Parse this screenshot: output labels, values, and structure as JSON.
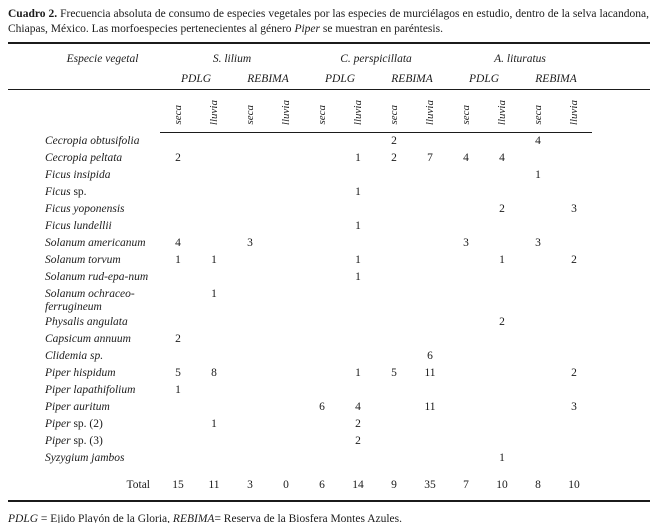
{
  "colors": {
    "text": "#1b1b1b",
    "background": "#ffffff",
    "rule": "#1b1b1b"
  },
  "caption": {
    "label": "Cuadro 2.",
    "text_before": " Frecuencia absoluta de consumo de especies vegetales por las especies de murciélagos en estudio, dentro de la selva lacandona, Chiapas, México. Las morfoespecies pertenecientes al género ",
    "italic_word": "Piper",
    "text_after": " se muestran en paréntesis."
  },
  "table": {
    "col_header": "Especie vegetal",
    "groups": [
      "S. lilium",
      "C. perspicillata",
      "A. lituratus"
    ],
    "sites": [
      "PDLG",
      "REBIMA",
      "PDLG",
      "REBIMA",
      "PDLG",
      "REBIMA"
    ],
    "seasons": [
      "seca",
      "lluvia",
      "seca",
      "lluvia",
      "seca",
      "lluvia",
      "seca",
      "lluvia",
      "seca",
      "lluvia",
      "seca",
      "lluvia"
    ],
    "rows": [
      {
        "italic": "Cecropia obtusifolia",
        "roman": "",
        "values": [
          "",
          "",
          "",
          "",
          "",
          "",
          "2",
          "",
          "",
          "",
          "4",
          ""
        ]
      },
      {
        "italic": "Cecropia peltata",
        "roman": "",
        "values": [
          "2",
          "",
          "",
          "",
          "",
          "1",
          "2",
          "7",
          "4",
          "4",
          "",
          ""
        ]
      },
      {
        "italic": "Ficus insipida",
        "roman": "",
        "values": [
          "",
          "",
          "",
          "",
          "",
          "",
          "",
          "",
          "",
          "",
          "1",
          ""
        ]
      },
      {
        "italic": "Ficus",
        "roman": " sp.",
        "values": [
          "",
          "",
          "",
          "",
          "",
          "1",
          "",
          "",
          "",
          "",
          "",
          ""
        ]
      },
      {
        "italic": "Ficus yoponensis",
        "roman": "",
        "values": [
          "",
          "",
          "",
          "",
          "",
          "",
          "",
          "",
          "",
          "2",
          "",
          "3"
        ]
      },
      {
        "italic": "Ficus lundellii",
        "roman": "",
        "values": [
          "",
          "",
          "",
          "",
          "",
          "1",
          "",
          "",
          "",
          "",
          "",
          ""
        ]
      },
      {
        "italic": "Solanum americanum",
        "roman": "",
        "values": [
          "4",
          "",
          "3",
          "",
          "",
          "",
          "",
          "",
          "3",
          "",
          "3",
          ""
        ]
      },
      {
        "italic": "Solanum torvum",
        "roman": "",
        "values": [
          "1",
          "1",
          "",
          "",
          "",
          "1",
          "",
          "",
          "",
          "1",
          "",
          "2"
        ]
      },
      {
        "italic": "Solanum rud-epa-num",
        "roman": "",
        "values": [
          "",
          "",
          "",
          "",
          "",
          "1",
          "",
          "",
          "",
          "",
          "",
          ""
        ]
      },
      {
        "italic": "Solanum ochraceo-ferrugineum",
        "roman": "",
        "values": [
          "",
          "1",
          "",
          "",
          "",
          "",
          "",
          "",
          "",
          "",
          "",
          ""
        ]
      },
      {
        "italic": "Physalis angulata",
        "roman": "",
        "values": [
          "",
          "",
          "",
          "",
          "",
          "",
          "",
          "",
          "",
          "2",
          "",
          ""
        ]
      },
      {
        "italic": "Capsicum annuum",
        "roman": "",
        "values": [
          "2",
          "",
          "",
          "",
          "",
          "",
          "",
          "",
          "",
          "",
          "",
          ""
        ]
      },
      {
        "italic": "Clidemia sp.",
        "roman": "",
        "values": [
          "",
          "",
          "",
          "",
          "",
          "",
          "",
          "6",
          "",
          "",
          "",
          ""
        ]
      },
      {
        "italic": "Piper hispidum",
        "roman": "",
        "values": [
          "5",
          "8",
          "",
          "",
          "",
          "1",
          "5",
          "11",
          "",
          "",
          "",
          "2"
        ]
      },
      {
        "italic": "Piper lapathifolium",
        "roman": "",
        "values": [
          "1",
          "",
          "",
          "",
          "",
          "",
          "",
          "",
          "",
          "",
          "",
          ""
        ]
      },
      {
        "italic": "Piper auritum",
        "roman": "",
        "values": [
          "",
          "",
          "",
          "",
          "6",
          "4",
          "",
          "11",
          "",
          "",
          "",
          "3"
        ]
      },
      {
        "italic": "Piper",
        "roman": " sp. (2)",
        "values": [
          "",
          "1",
          "",
          "",
          "",
          "2",
          "",
          "",
          "",
          "",
          "",
          ""
        ]
      },
      {
        "italic": "Piper",
        "roman": " sp. (3)",
        "values": [
          "",
          "",
          "",
          "",
          "",
          "2",
          "",
          "",
          "",
          "",
          "",
          ""
        ]
      },
      {
        "italic": "Syzygium jambos",
        "roman": "",
        "values": [
          "",
          "",
          "",
          "",
          "",
          "",
          "",
          "",
          "",
          "1",
          "",
          ""
        ]
      }
    ],
    "total": {
      "label": "Total",
      "values": [
        "15",
        "11",
        "3",
        "0",
        "6",
        "14",
        "9",
        "35",
        "7",
        "10",
        "8",
        "10"
      ]
    }
  },
  "footnote": {
    "italic1": "PDLG",
    "text1": " = Ejido Playón de la Gloria, ",
    "italic2": "REBIMA",
    "text2": "= Reserva de la Biosfera Montes Azules."
  }
}
